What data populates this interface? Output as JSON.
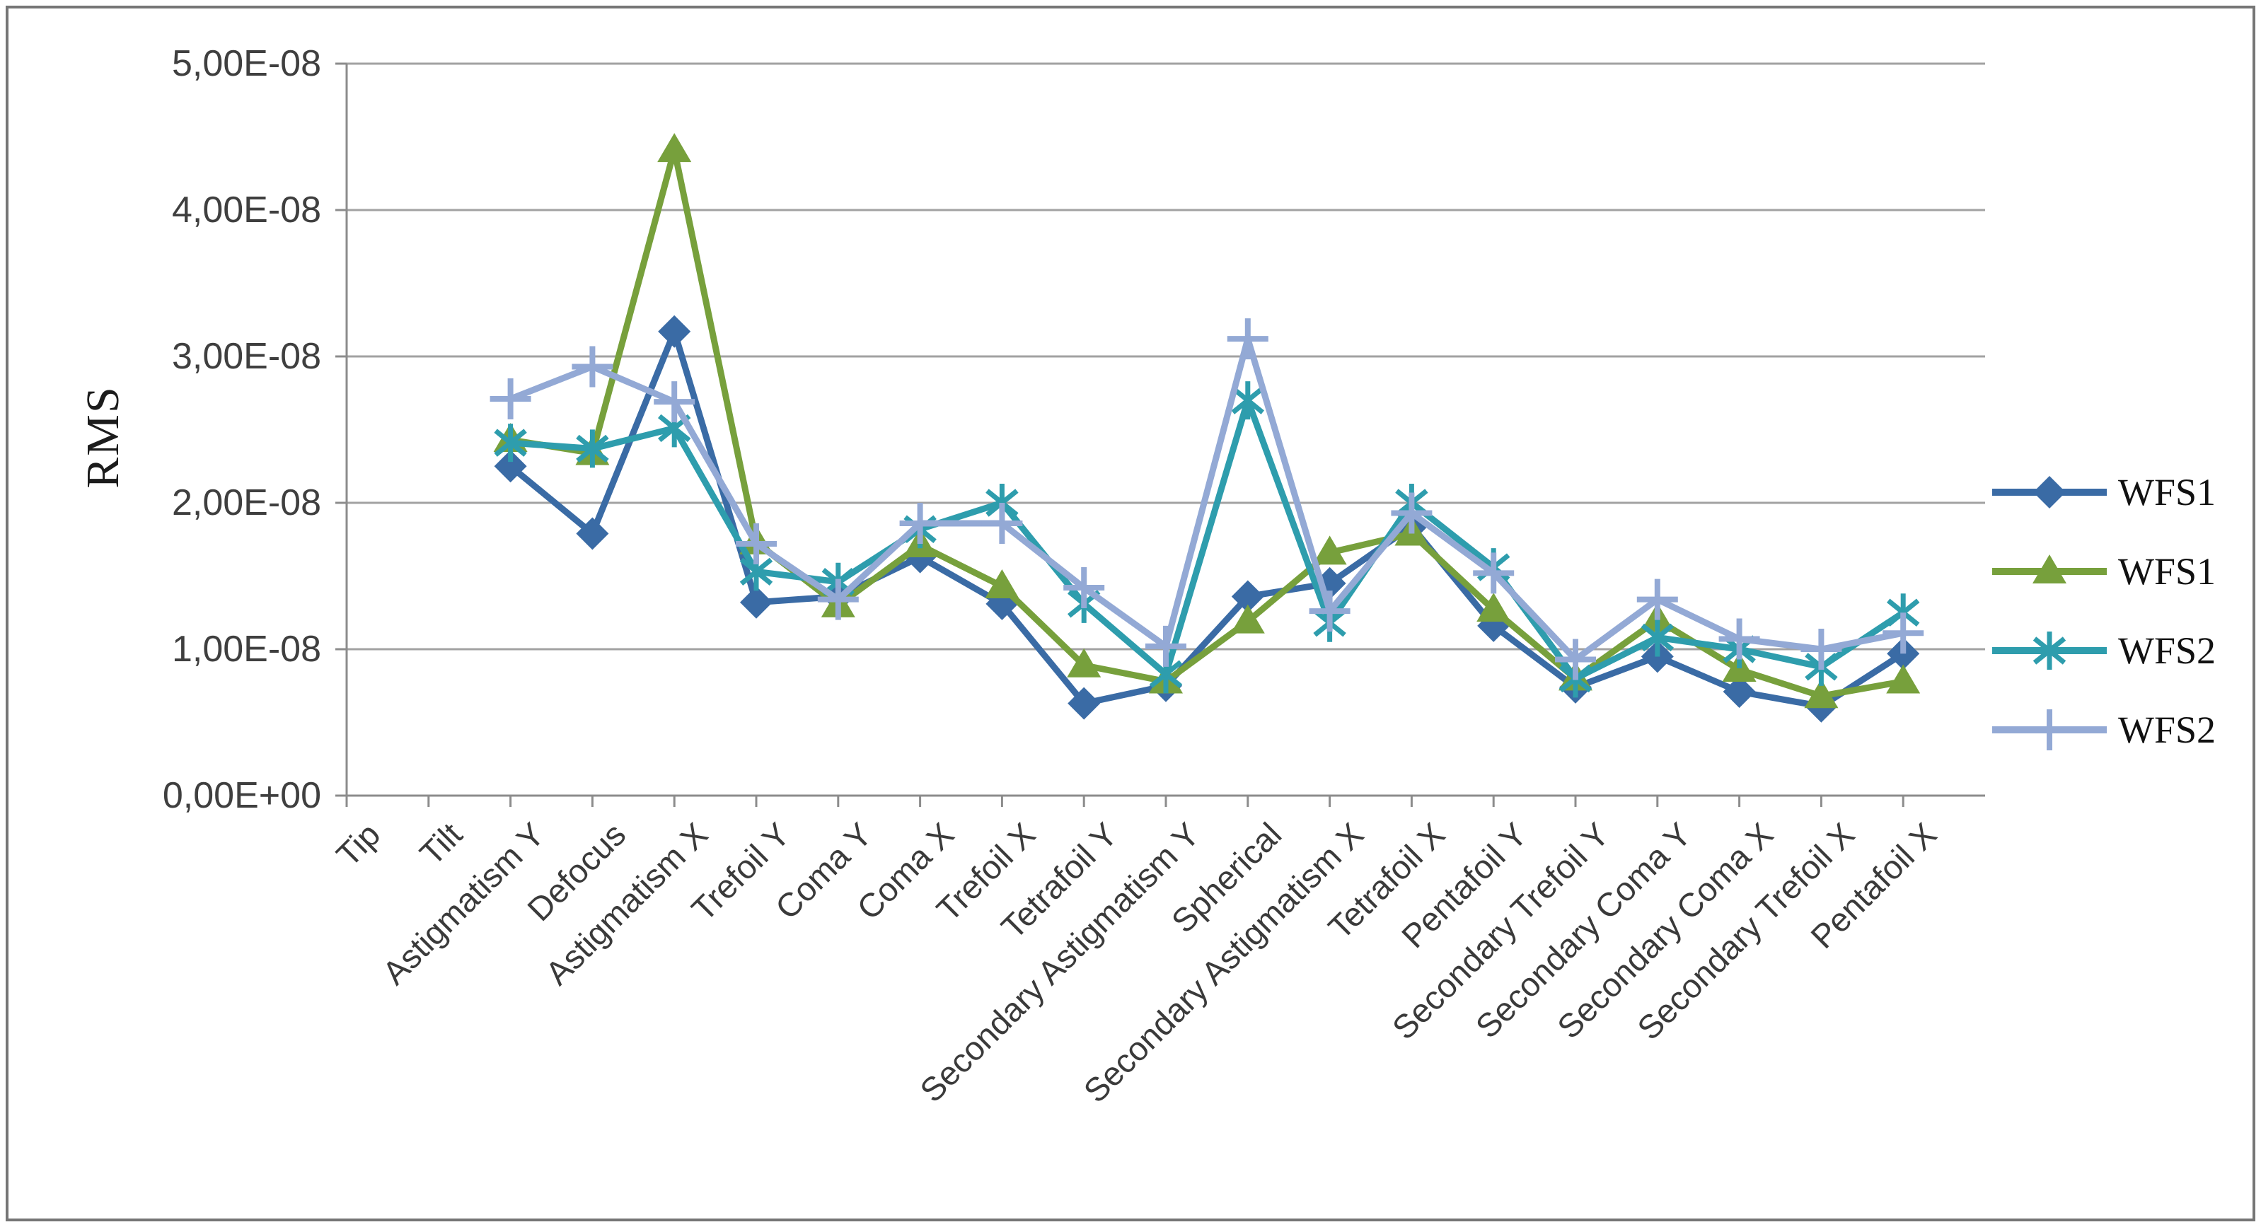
{
  "ylabel_note": "vertical axis title shown rotated on left side",
  "chart_data": {
    "type": "line",
    "title": "",
    "ylabel": "RMS",
    "xlabel": "",
    "grid": "horizontal",
    "legend_position": "right",
    "ylim": [
      0,
      5e-08
    ],
    "y_ticks": [
      "0,00E+00",
      "1,00E-08",
      "2,00E-08",
      "3,00E-08",
      "4,00E-08",
      "5,00E-08"
    ],
    "categories": [
      "Tip",
      "Tilt",
      "Astigmatism Y",
      "Defocus",
      "Astigmatism X",
      "Trefoil Y",
      "Coma Y",
      "Coma X",
      "Trefoil X",
      "Tetrafoil Y",
      "Secondary Astigmatism Y",
      "Spherical",
      "Secondary Astigmatism X",
      "Tetrafoil X",
      "Pentafoil Y",
      "Secondary Trefoil Y",
      "Secondary Coma Y",
      "Secondary Coma X",
      "Secondary Trefoil X",
      "Pentafoil X"
    ],
    "series": [
      {
        "name": "WFS1",
        "marker": "diamond",
        "color": "#3a6ba5",
        "values": [
          null,
          null,
          2.25e-08,
          1.79e-08,
          3.17e-08,
          1.32e-08,
          1.36e-08,
          1.63e-08,
          1.31e-08,
          6.3e-09,
          7.5e-09,
          1.36e-08,
          1.45e-08,
          1.84e-08,
          1.16e-08,
          7.4e-09,
          9.5e-09,
          7.1e-09,
          6.1e-09,
          9.7e-09
        ]
      },
      {
        "name": "WFS1",
        "marker": "triangle",
        "color": "#77a03c",
        "values": [
          null,
          null,
          2.43e-08,
          2.34e-08,
          4.41e-08,
          1.73e-08,
          1.3e-08,
          1.71e-08,
          1.43e-08,
          8.9e-09,
          7.8e-09,
          1.19e-08,
          1.66e-08,
          1.79e-08,
          1.27e-08,
          8e-09,
          1.2e-08,
          8.6e-09,
          6.8e-09,
          7.8e-09
        ]
      },
      {
        "name": "WFS2",
        "marker": "asterisk",
        "color": "#2e9dad",
        "values": [
          null,
          null,
          2.41e-08,
          2.37e-08,
          2.51e-08,
          1.53e-08,
          1.46e-08,
          1.82e-08,
          2e-08,
          1.31e-08,
          8.3e-09,
          2.7e-08,
          1.18e-08,
          2e-08,
          1.56e-08,
          8e-09,
          1.08e-08,
          1e-08,
          8.8e-09,
          1.25e-08
        ]
      },
      {
        "name": "WFS2",
        "marker": "plus",
        "color": "#93a9d5",
        "values": [
          null,
          null,
          2.71e-08,
          2.93e-08,
          2.69e-08,
          1.72e-08,
          1.34e-08,
          1.86e-08,
          1.86e-08,
          1.42e-08,
          1.02e-08,
          3.12e-08,
          1.26e-08,
          1.93e-08,
          1.52e-08,
          9.3e-09,
          1.34e-08,
          1.07e-08,
          1e-08,
          1.11e-08
        ]
      }
    ]
  }
}
